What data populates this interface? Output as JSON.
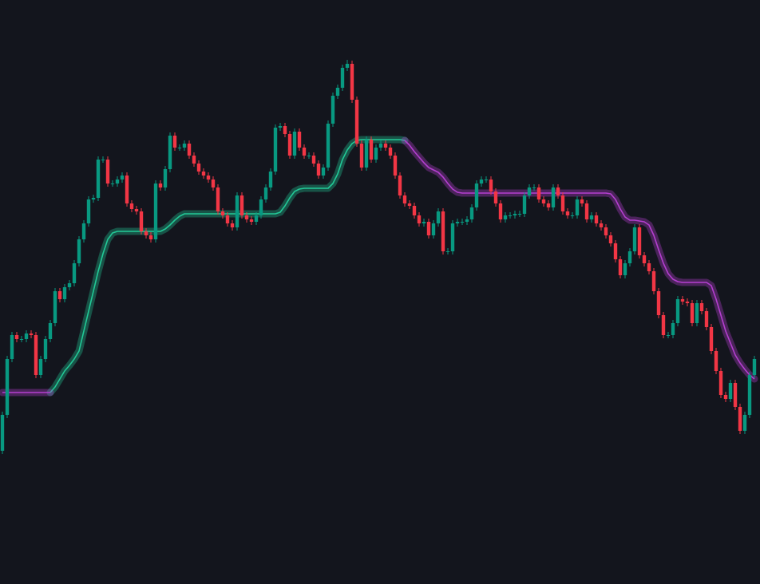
{
  "chart_data": {
    "type": "candlestick",
    "background": "#13151d",
    "up_color": "#089981",
    "down_color": "#f23645",
    "ylim": [
      0,
      732
    ],
    "open": [
      167,
      212,
      282,
      312,
      307,
      307,
      314,
      312,
      262,
      282,
      307,
      327,
      367,
      357,
      372,
      377,
      402,
      432,
      452,
      482,
      484,
      532,
      532,
      502,
      502,
      507,
      512,
      477,
      470,
      467,
      442,
      437,
      432,
      502,
      497,
      520,
      562,
      547,
      547,
      552,
      537,
      527,
      517,
      512,
      507,
      497,
      467,
      462,
      452,
      447,
      487,
      462,
      457,
      454,
      462,
      482,
      497,
      517,
      572,
      574,
      564,
      537,
      567,
      547,
      537,
      537,
      527,
      512,
      522,
      577,
      612,
      622,
      647,
      652,
      607,
      552,
      522,
      557,
      532,
      547,
      552,
      547,
      537,
      512,
      487,
      477,
      474,
      462,
      452,
      454,
      437,
      452,
      467,
      417,
      417,
      452,
      454,
      454,
      457,
      472,
      502,
      507,
      507,
      492,
      477,
      457,
      462,
      462,
      464,
      464,
      487,
      497,
      497,
      482,
      477,
      472,
      497,
      487,
      467,
      462,
      462,
      482,
      477,
      457,
      462,
      452,
      447,
      437,
      427,
      407,
      387,
      402,
      417,
      447,
      412,
      402,
      392,
      367,
      337,
      312,
      312,
      327,
      357,
      354,
      352,
      327,
      352,
      342,
      322,
      292,
      267,
      237,
      232,
      252,
      222,
      192,
      212,
      262
    ],
    "high": [
      216,
      286,
      316,
      316,
      311,
      318,
      318,
      316,
      286,
      311,
      331,
      371,
      371,
      376,
      381,
      406,
      436,
      456,
      486,
      488,
      536,
      536,
      536,
      506,
      511,
      516,
      516,
      481,
      474,
      471,
      446,
      441,
      506,
      506,
      524,
      566,
      566,
      551,
      556,
      556,
      541,
      531,
      521,
      516,
      511,
      501,
      471,
      466,
      456,
      491,
      491,
      466,
      461,
      466,
      486,
      501,
      521,
      576,
      578,
      578,
      568,
      571,
      571,
      551,
      541,
      541,
      531,
      526,
      581,
      616,
      626,
      651,
      657,
      656,
      611,
      556,
      561,
      561,
      551,
      556,
      556,
      551,
      541,
      516,
      491,
      481,
      478,
      466,
      458,
      458,
      456,
      471,
      471,
      421,
      456,
      458,
      458,
      461,
      476,
      506,
      511,
      511,
      511,
      496,
      481,
      466,
      466,
      468,
      468,
      491,
      501,
      501,
      501,
      486,
      481,
      501,
      501,
      491,
      471,
      466,
      486,
      486,
      481,
      466,
      466,
      456,
      451,
      441,
      431,
      411,
      406,
      421,
      451,
      451,
      416,
      406,
      396,
      371,
      341,
      316,
      331,
      361,
      361,
      358,
      356,
      356,
      356,
      346,
      326,
      296,
      271,
      241,
      256,
      256,
      226,
      216,
      266,
      286
    ],
    "low": [
      163,
      208,
      278,
      303,
      303,
      303,
      308,
      258,
      258,
      278,
      303,
      323,
      353,
      353,
      368,
      373,
      398,
      428,
      448,
      478,
      480,
      528,
      498,
      498,
      498,
      503,
      473,
      466,
      463,
      438,
      433,
      428,
      428,
      493,
      493,
      516,
      543,
      543,
      543,
      533,
      523,
      513,
      508,
      503,
      493,
      463,
      458,
      448,
      443,
      443,
      458,
      453,
      450,
      450,
      458,
      478,
      493,
      513,
      568,
      560,
      533,
      533,
      543,
      533,
      533,
      523,
      508,
      508,
      518,
      573,
      608,
      618,
      643,
      603,
      548,
      518,
      518,
      528,
      528,
      543,
      543,
      533,
      508,
      483,
      473,
      470,
      458,
      448,
      448,
      433,
      433,
      448,
      413,
      413,
      413,
      448,
      450,
      450,
      453,
      468,
      498,
      503,
      488,
      473,
      453,
      453,
      458,
      458,
      460,
      460,
      483,
      493,
      478,
      473,
      468,
      468,
      483,
      463,
      458,
      458,
      458,
      473,
      453,
      453,
      448,
      443,
      433,
      423,
      403,
      383,
      383,
      398,
      413,
      408,
      398,
      388,
      363,
      333,
      308,
      308,
      308,
      323,
      350,
      348,
      323,
      323,
      338,
      318,
      288,
      263,
      233,
      228,
      228,
      218,
      188,
      188,
      208,
      258
    ],
    "close": [
      212,
      282,
      312,
      307,
      307,
      314,
      312,
      262,
      282,
      307,
      327,
      367,
      357,
      372,
      377,
      402,
      432,
      452,
      482,
      484,
      532,
      532,
      502,
      502,
      507,
      512,
      477,
      470,
      467,
      442,
      437,
      432,
      502,
      497,
      520,
      562,
      547,
      547,
      552,
      537,
      527,
      517,
      512,
      507,
      497,
      467,
      462,
      452,
      447,
      487,
      462,
      457,
      454,
      462,
      482,
      497,
      517,
      572,
      574,
      564,
      537,
      567,
      547,
      537,
      537,
      527,
      512,
      522,
      577,
      612,
      622,
      647,
      652,
      607,
      552,
      522,
      557,
      532,
      547,
      552,
      547,
      537,
      512,
      487,
      477,
      474,
      462,
      452,
      454,
      437,
      452,
      467,
      417,
      417,
      452,
      454,
      454,
      457,
      472,
      502,
      507,
      507,
      492,
      477,
      457,
      462,
      462,
      464,
      464,
      487,
      497,
      497,
      482,
      477,
      472,
      497,
      487,
      467,
      462,
      462,
      482,
      477,
      457,
      462,
      452,
      447,
      437,
      427,
      407,
      387,
      402,
      417,
      447,
      412,
      402,
      392,
      367,
      337,
      312,
      312,
      327,
      357,
      354,
      352,
      327,
      352,
      342,
      322,
      292,
      267,
      237,
      232,
      252,
      222,
      192,
      212,
      262,
      282
    ],
    "series": [
      {
        "color": "#22c997",
        "values": [
          null,
          null,
          null,
          null,
          null,
          null,
          null,
          null,
          null,
          null,
          240,
          247,
          257,
          267,
          274,
          282,
          292,
          317,
          342,
          367,
          392,
          414,
          432,
          440,
          442,
          442,
          442,
          442,
          442,
          442,
          442,
          442,
          442,
          442,
          445,
          450,
          456,
          461,
          464,
          464,
          464,
          464,
          464,
          464,
          464,
          464,
          464,
          464,
          464,
          464,
          464,
          464,
          464,
          464,
          464,
          464,
          464,
          464,
          466,
          474,
          484,
          492,
          495,
          496,
          496,
          496,
          496,
          496,
          496,
          502,
          514,
          532,
          544,
          552,
          556,
          557,
          557,
          557,
          557,
          557,
          557,
          557,
          557,
          557,
          556,
          null,
          null,
          null,
          null,
          null,
          null,
          null,
          null,
          null,
          null,
          null,
          null,
          null,
          null,
          null,
          null,
          null,
          null,
          null,
          null,
          null,
          null,
          null,
          null,
          null,
          null,
          null,
          null,
          null,
          null,
          null,
          null,
          null,
          null,
          null,
          null,
          null,
          null,
          null,
          null,
          null,
          null,
          null,
          null,
          null,
          null,
          null,
          null,
          null,
          null,
          null,
          null,
          null,
          null,
          null,
          null,
          null,
          null,
          null,
          null,
          null,
          null,
          null,
          null,
          null,
          null,
          null,
          null,
          null,
          null,
          null,
          null,
          null
        ]
      },
      {
        "color": "#b43fd0",
        "values": [
          240,
          240,
          240,
          240,
          240,
          240,
          240,
          240,
          240,
          240,
          240,
          null,
          null,
          null,
          null,
          null,
          null,
          null,
          null,
          null,
          null,
          null,
          null,
          null,
          null,
          null,
          null,
          null,
          null,
          null,
          null,
          null,
          null,
          null,
          null,
          null,
          null,
          null,
          null,
          null,
          null,
          null,
          null,
          null,
          null,
          null,
          null,
          null,
          null,
          null,
          null,
          null,
          null,
          null,
          null,
          null,
          null,
          null,
          null,
          null,
          null,
          null,
          null,
          null,
          null,
          null,
          null,
          null,
          null,
          null,
          null,
          null,
          null,
          null,
          null,
          null,
          null,
          null,
          null,
          null,
          null,
          null,
          null,
          null,
          556,
          550,
          542,
          535,
          528,
          522,
          519,
          516,
          510,
          502,
          495,
          491,
          490,
          490,
          490,
          490,
          490,
          490,
          490,
          490,
          490,
          490,
          490,
          490,
          490,
          490,
          490,
          490,
          490,
          490,
          490,
          490,
          490,
          490,
          490,
          490,
          490,
          490,
          490,
          490,
          490,
          490,
          490,
          489,
          482,
          470,
          460,
          456,
          456,
          455,
          454,
          450,
          437,
          419,
          402,
          389,
          382,
          379,
          378,
          378,
          378,
          378,
          378,
          378,
          374,
          357,
          337,
          317,
          302,
          287,
          277,
          269,
          262,
          257
        ]
      }
    ]
  }
}
